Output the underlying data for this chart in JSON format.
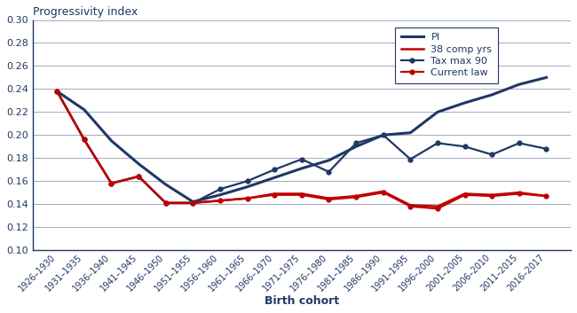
{
  "title": "Progressivity index",
  "xlabel": "Birth cohort",
  "ylim": [
    0.1,
    0.3
  ],
  "yticks": [
    0.1,
    0.12,
    0.14,
    0.16,
    0.18,
    0.2,
    0.22,
    0.24,
    0.26,
    0.28,
    0.3
  ],
  "categories": [
    "1926–1930",
    "1931–1935",
    "1936–1940",
    "1941–1945",
    "1946–1950",
    "1951–1955",
    "1956–1960",
    "1961–1965",
    "1966–1970",
    "1971–1975",
    "1976–1980",
    "1981–1985",
    "1986–1990",
    "1991–1995",
    "1996–2000",
    "2001–2005",
    "2006–2010",
    "2011–2015",
    "2016–2017"
  ],
  "PI": [
    0.238,
    0.222,
    0.195,
    0.175,
    0.157,
    0.142,
    0.148,
    0.155,
    0.163,
    0.171,
    0.178,
    0.19,
    0.2,
    0.202,
    0.22,
    0.228,
    0.235,
    0.244,
    0.25
  ],
  "comp38": [
    0.238,
    0.196,
    0.158,
    0.164,
    0.141,
    0.141,
    0.143,
    0.145,
    0.149,
    0.149,
    0.145,
    0.147,
    0.151,
    0.139,
    0.138,
    0.149,
    0.148,
    0.15,
    0.147
  ],
  "taxmax90": [
    0.238,
    0.196,
    0.158,
    0.164,
    0.141,
    0.141,
    0.153,
    0.16,
    0.17,
    0.179,
    0.168,
    0.193,
    0.2,
    0.179,
    0.193,
    0.19,
    0.183,
    0.193,
    0.188
  ],
  "currentlaw": [
    0.238,
    0.196,
    0.158,
    0.164,
    0.141,
    0.141,
    0.143,
    0.145,
    0.148,
    0.148,
    0.144,
    0.146,
    0.15,
    0.138,
    0.136,
    0.148,
    0.147,
    0.149,
    0.147
  ],
  "PI_color": "#1F3864",
  "comp38_color": "#C00000",
  "taxmax90_color": "#1F3864",
  "currentlaw_color": "#C00000",
  "background_color": "#FFFFFF",
  "grid_color": "#9999BB",
  "legend_labels": [
    "PI",
    "38 comp yrs",
    "Tax max 90",
    "Current law"
  ]
}
